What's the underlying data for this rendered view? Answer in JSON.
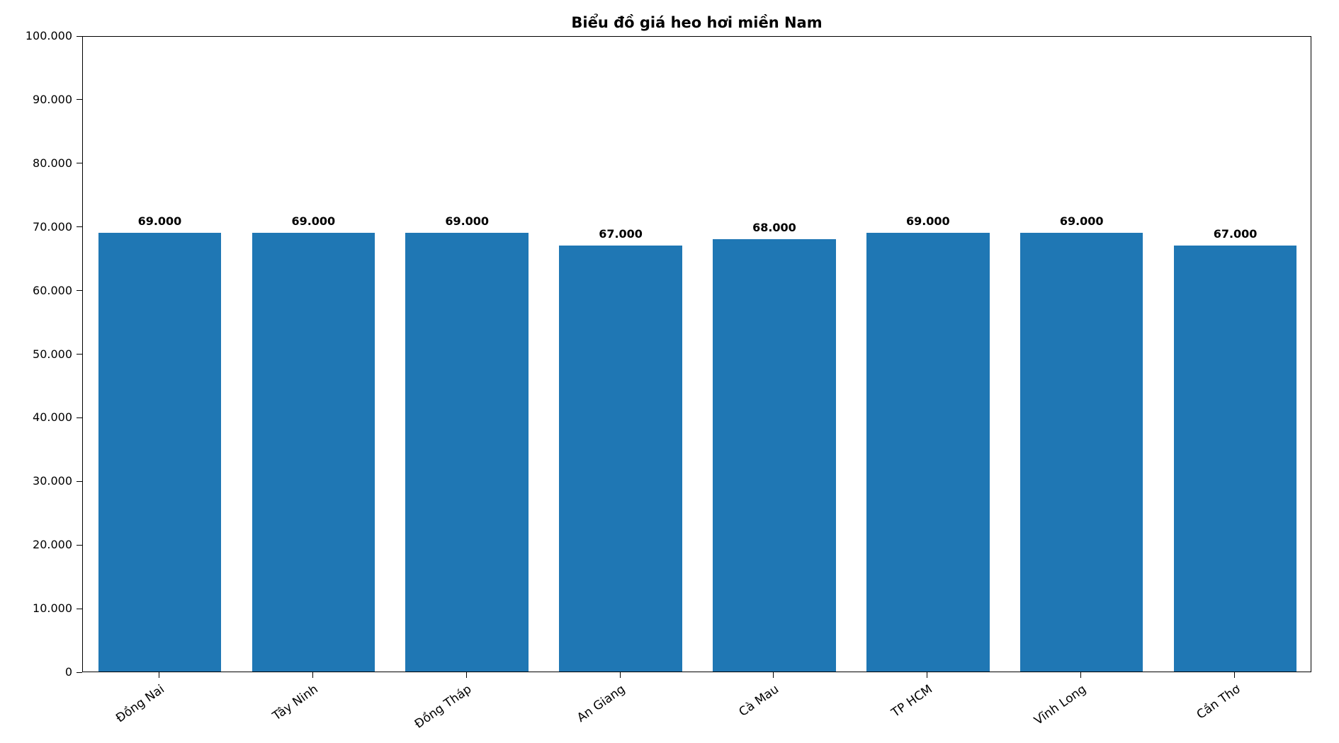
{
  "chart_data": {
    "type": "bar",
    "title": "Biểu đồ giá heo hơi miền Nam",
    "categories": [
      "Đồng Nai",
      "Tây Ninh",
      "Đồng Tháp",
      "An Giang",
      "Cà Mau",
      "TP HCM",
      "Vĩnh Long",
      "Cần Thơ"
    ],
    "values": [
      69000,
      69000,
      69000,
      67000,
      68000,
      69000,
      69000,
      67000
    ],
    "value_labels": [
      "69.000",
      "69.000",
      "69.000",
      "67.000",
      "68.000",
      "69.000",
      "69.000",
      "67.000"
    ],
    "xlabel": "",
    "ylabel": "",
    "ylim": [
      0,
      100000
    ],
    "yticks": [
      0,
      10000,
      20000,
      30000,
      40000,
      50000,
      60000,
      70000,
      80000,
      90000,
      100000
    ],
    "ytick_labels": [
      "0",
      "10.000",
      "20.000",
      "30.000",
      "40.000",
      "50.000",
      "60.000",
      "70.000",
      "80.000",
      "90.000",
      "100.000"
    ],
    "bar_color": "#1f77b4",
    "bar_width_ratio": 0.8,
    "grid": false,
    "legend_position": "none",
    "x_label_rotation_deg": 35
  }
}
